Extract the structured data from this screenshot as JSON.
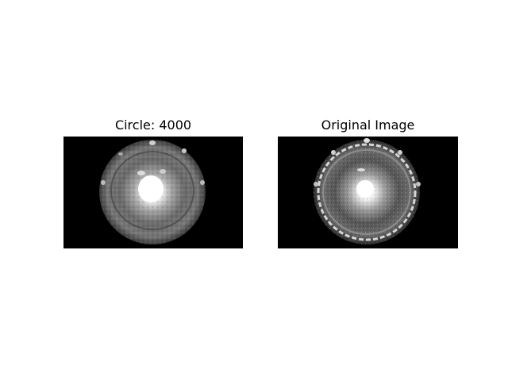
{
  "figure": {
    "panels": [
      {
        "title": "Circle: 4000"
      },
      {
        "title": "Original Image"
      }
    ],
    "colors": {
      "background": "#ffffff",
      "image_background": "#000000",
      "text": "#000000"
    }
  }
}
